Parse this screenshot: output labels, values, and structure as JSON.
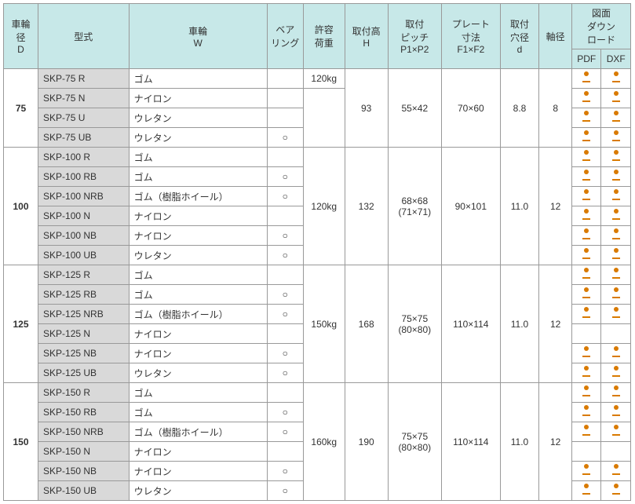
{
  "headers": {
    "diameter": "車輪径\nD",
    "model": "型式",
    "wheel": "車輪\nW",
    "bearing": "ベア\nリング",
    "load": "許容\n荷重",
    "height": "取付高\nH",
    "pitch": "取付\nピッチ\nP1×P2",
    "plate": "プレート\n寸法\nF1×F2",
    "hole": "取付\n穴径\nd",
    "shaft": "軸径",
    "download": "図面\nダウン\nロード",
    "pdf": "PDF",
    "dxf": "DXF"
  },
  "groups": [
    {
      "diameter": "75",
      "load": "120kg",
      "load_row": 0,
      "height": "93",
      "pitch": "55×42",
      "plate": "70×60",
      "hole": "8.8",
      "shaft": "8",
      "rows": [
        {
          "model": "SKP-75 R",
          "wheel": "ゴム",
          "bearing": "",
          "pdf": true,
          "dxf": true
        },
        {
          "model": "SKP-75 N",
          "wheel": "ナイロン",
          "bearing": "",
          "pdf": true,
          "dxf": true
        },
        {
          "model": "SKP-75 U",
          "wheel": "ウレタン",
          "bearing": "",
          "pdf": true,
          "dxf": true
        },
        {
          "model": "SKP-75 UB",
          "wheel": "ウレタン",
          "bearing": "○",
          "pdf": true,
          "dxf": true
        }
      ]
    },
    {
      "diameter": "100",
      "load": "120kg",
      "load_row": null,
      "height": "132",
      "pitch": "68×68\n(71×71)",
      "plate": "90×101",
      "hole": "11.0",
      "shaft": "12",
      "rows": [
        {
          "model": "SKP-100 R",
          "wheel": "ゴム",
          "bearing": "",
          "pdf": true,
          "dxf": true
        },
        {
          "model": "SKP-100 RB",
          "wheel": "ゴム",
          "bearing": "○",
          "pdf": true,
          "dxf": true
        },
        {
          "model": "SKP-100 NRB",
          "wheel": "ゴム（樹脂ホイール）",
          "bearing": "○",
          "pdf": true,
          "dxf": true
        },
        {
          "model": "SKP-100 N",
          "wheel": "ナイロン",
          "bearing": "",
          "pdf": true,
          "dxf": true
        },
        {
          "model": "SKP-100 NB",
          "wheel": "ナイロン",
          "bearing": "○",
          "pdf": true,
          "dxf": true
        },
        {
          "model": "SKP-100 UB",
          "wheel": "ウレタン",
          "bearing": "○",
          "pdf": true,
          "dxf": true
        }
      ]
    },
    {
      "diameter": "125",
      "load": "150kg",
      "load_row": null,
      "height": "168",
      "pitch": "75×75\n(80×80)",
      "plate": "110×114",
      "hole": "11.0",
      "shaft": "12",
      "rows": [
        {
          "model": "SKP-125 R",
          "wheel": "ゴム",
          "bearing": "",
          "pdf": true,
          "dxf": true
        },
        {
          "model": "SKP-125 RB",
          "wheel": "ゴム",
          "bearing": "○",
          "pdf": true,
          "dxf": true
        },
        {
          "model": "SKP-125 NRB",
          "wheel": "ゴム（樹脂ホイール）",
          "bearing": "○",
          "pdf": true,
          "dxf": true
        },
        {
          "model": "SKP-125 N",
          "wheel": "ナイロン",
          "bearing": "",
          "pdf": false,
          "dxf": false
        },
        {
          "model": "SKP-125 NB",
          "wheel": "ナイロン",
          "bearing": "○",
          "pdf": true,
          "dxf": true
        },
        {
          "model": "SKP-125 UB",
          "wheel": "ウレタン",
          "bearing": "○",
          "pdf": true,
          "dxf": true
        }
      ]
    },
    {
      "diameter": "150",
      "load": "160kg",
      "load_row": null,
      "height": "190",
      "pitch": "75×75\n(80×80)",
      "plate": "110×114",
      "hole": "11.0",
      "shaft": "12",
      "rows": [
        {
          "model": "SKP-150 R",
          "wheel": "ゴム",
          "bearing": "",
          "pdf": true,
          "dxf": true
        },
        {
          "model": "SKP-150 RB",
          "wheel": "ゴム",
          "bearing": "○",
          "pdf": true,
          "dxf": true
        },
        {
          "model": "SKP-150 NRB",
          "wheel": "ゴム（樹脂ホイール）",
          "bearing": "○",
          "pdf": true,
          "dxf": true
        },
        {
          "model": "SKP-150 N",
          "wheel": "ナイロン",
          "bearing": "",
          "pdf": false,
          "dxf": false
        },
        {
          "model": "SKP-150 NB",
          "wheel": "ナイロン",
          "bearing": "○",
          "pdf": true,
          "dxf": true
        },
        {
          "model": "SKP-150 UB",
          "wheel": "ウレタン",
          "bearing": "○",
          "pdf": true,
          "dxf": true
        }
      ]
    }
  ]
}
